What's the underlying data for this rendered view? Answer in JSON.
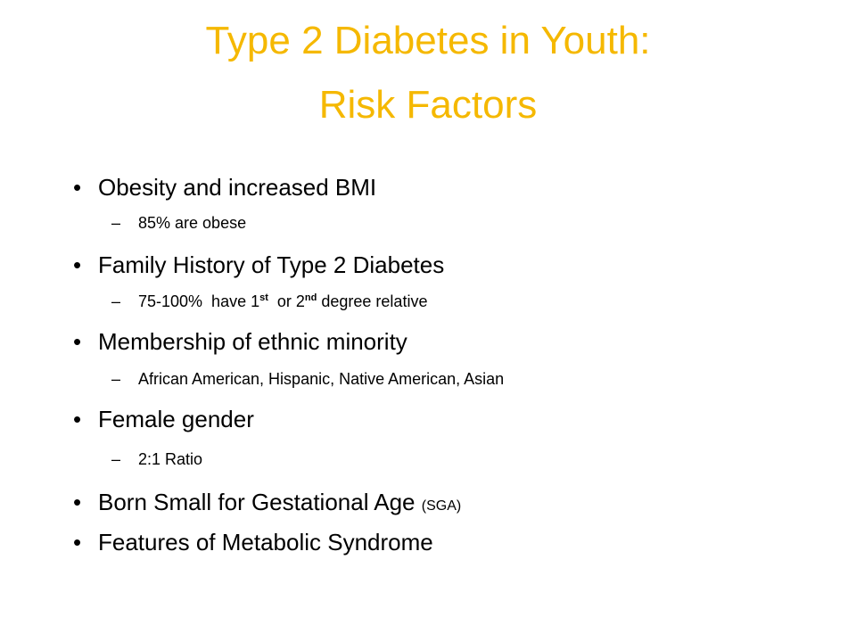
{
  "title": {
    "line1": "Type 2 Diabetes in Youth:",
    "line2": "Risk Factors"
  },
  "bullets": [
    {
      "text": "Obesity and increased BMI",
      "sub": "85% are obese"
    },
    {
      "text": "Family History of Type 2 Diabetes",
      "sub_parts": [
        "75-100%  have 1",
        "st",
        "  or 2",
        "nd",
        " degree relative"
      ]
    },
    {
      "text": "Membership of ethnic minority",
      "sub": "African American, Hispanic, Native American, Asian"
    },
    {
      "text": "Female gender",
      "sub": "2:1 Ratio"
    },
    {
      "text": "Born Small for Gestational Age",
      "note": "(SGA)"
    },
    {
      "text": "Features of Metabolic Syndrome"
    }
  ]
}
